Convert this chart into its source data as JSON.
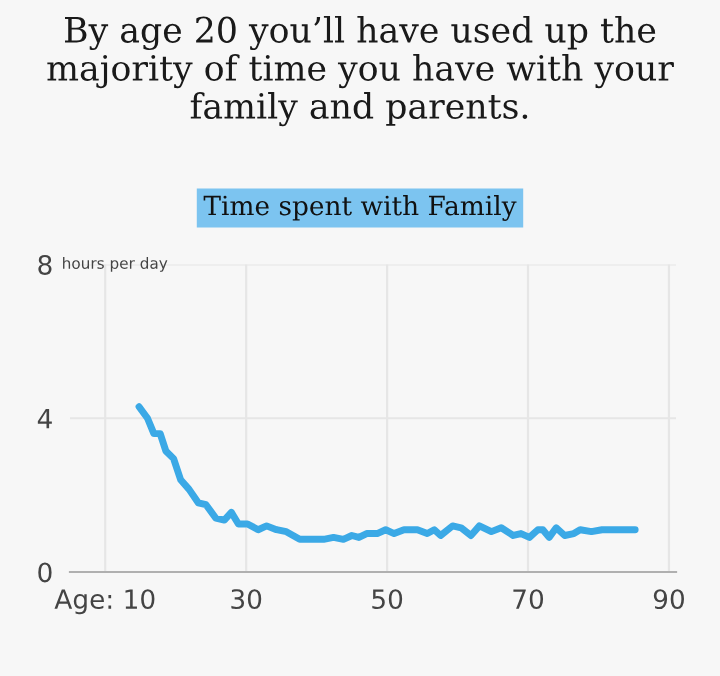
{
  "chart_data": {
    "type": "line",
    "title": "By age 20 you’ll have used up the majority of time you have with your family and parents.",
    "subtitle": "Time spent with Family",
    "ylabel": "hours per day",
    "series": [
      {
        "color": "#3ba9e6",
        "x": [
          14.8,
          16.0,
          16.9,
          17.8,
          18.6,
          19.7,
          20.7,
          21.9,
          23.2,
          24.3,
          25.7,
          26.9,
          27.9,
          28.9,
          30.2,
          31.7,
          32.9,
          34.3,
          35.7,
          37.6,
          39.5,
          41,
          42.4,
          43.8,
          45,
          46,
          47.1,
          48.6,
          49.8,
          51,
          52.4,
          54.3,
          55.7,
          56.7,
          57.6,
          59.3,
          60.5,
          61.9,
          63.1,
          64.8,
          66.2,
          67.9,
          69,
          70.2,
          71.4,
          72.1,
          73,
          74,
          75.2,
          76.5,
          77.4,
          79.0,
          80.5,
          85.2
        ],
        "values": [
          4.3,
          4.0,
          3.6,
          3.6,
          3.15,
          2.95,
          2.4,
          2.15,
          1.8,
          1.75,
          1.4,
          1.35,
          1.55,
          1.25,
          1.25,
          1.1,
          1.2,
          1.1,
          1.05,
          0.85,
          0.85,
          0.85,
          0.9,
          0.85,
          0.95,
          0.9,
          1.0,
          1.0,
          1.1,
          1.0,
          1.1,
          1.1,
          1.0,
          1.1,
          0.95,
          1.2,
          1.15,
          0.95,
          1.2,
          1.05,
          1.15,
          0.95,
          1.0,
          0.9,
          1.1,
          1.1,
          0.9,
          1.15,
          0.95,
          1.0,
          1.1,
          1.05,
          1.1,
          1.1
        ]
      }
    ],
    "xlim": [
      5,
      91
    ],
    "ylim": [
      0,
      8
    ],
    "xticks": [
      {
        "value": 10,
        "label": "Age: 10"
      },
      30,
      50,
      70,
      90
    ],
    "yticks": [
      0,
      4,
      8
    ],
    "grid": true,
    "marker": "none",
    "line_style": "solid"
  }
}
